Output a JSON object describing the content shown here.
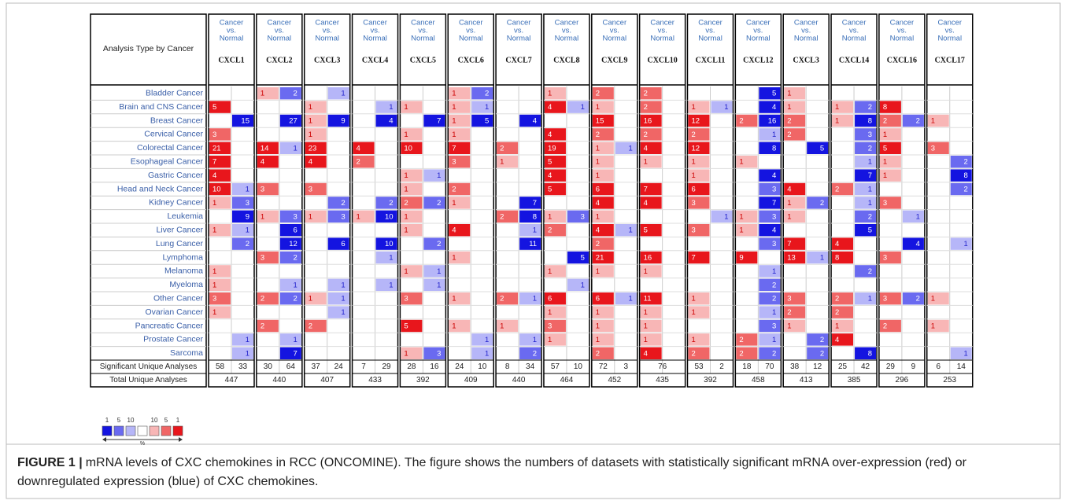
{
  "table": {
    "corner": "Analysis Type by Cancer",
    "column_header_lines": [
      "Cancer",
      "vs.",
      "Normal"
    ],
    "rows": [
      "Bladder Cancer",
      "Brain and CNS Cancer",
      "Breast Cancer",
      "Cervical Cancer",
      "Colorectal Cancer",
      "Esophageal Cancer",
      "Gastric Cancer",
      "Head and Neck Cancer",
      "Kidney Cancer",
      "Leukemia",
      "Liver Cancer",
      "Lung Cancer",
      "Lymphoma",
      "Melanoma",
      "Myeloma",
      "Other Cancer",
      "Ovarian Cancer",
      "Pancreatic Cancer",
      "Prostate Cancer",
      "Sarcoma"
    ],
    "summary_labels": [
      "Significant Unique Analyses",
      "Total Unique Analyses"
    ],
    "genes": [
      {
        "name": "CXCL1",
        "up": [
          null,
          5,
          null,
          3,
          21,
          7,
          4,
          10,
          1,
          null,
          1,
          null,
          null,
          1,
          1,
          3,
          1,
          null,
          null,
          null
        ],
        "down": [
          null,
          null,
          15,
          null,
          null,
          null,
          null,
          1,
          3,
          9,
          1,
          2,
          null,
          null,
          null,
          null,
          null,
          null,
          1,
          1
        ],
        "significant": [
          58,
          33
        ],
        "total": 447
      },
      {
        "name": "CXCL2",
        "up": [
          1,
          null,
          null,
          null,
          14,
          4,
          null,
          3,
          null,
          1,
          null,
          null,
          3,
          null,
          null,
          2,
          null,
          2,
          null,
          null
        ],
        "down": [
          2,
          null,
          27,
          null,
          1,
          null,
          null,
          null,
          null,
          3,
          6,
          12,
          2,
          null,
          1,
          2,
          null,
          null,
          1,
          7
        ],
        "significant": [
          30,
          64
        ],
        "total": 440
      },
      {
        "name": "CXCL3",
        "up": [
          null,
          1,
          1,
          1,
          23,
          4,
          null,
          3,
          null,
          1,
          null,
          null,
          null,
          null,
          null,
          1,
          null,
          2,
          null,
          null
        ],
        "down": [
          1,
          null,
          9,
          null,
          null,
          null,
          null,
          null,
          2,
          3,
          null,
          6,
          null,
          null,
          1,
          1,
          1,
          null,
          null,
          null
        ],
        "significant": [
          37,
          24
        ],
        "total": 407
      },
      {
        "name": "CXCL4",
        "up": [
          null,
          null,
          null,
          null,
          4,
          2,
          null,
          null,
          null,
          1,
          null,
          null,
          null,
          null,
          null,
          null,
          null,
          null,
          null,
          null
        ],
        "down": [
          null,
          1,
          4,
          null,
          null,
          null,
          null,
          null,
          2,
          10,
          null,
          10,
          1,
          null,
          1,
          null,
          null,
          null,
          null,
          null
        ],
        "significant": [
          7,
          29
        ],
        "total": 433
      },
      {
        "name": "CXCL5",
        "up": [
          null,
          1,
          null,
          1,
          10,
          null,
          1,
          1,
          2,
          1,
          1,
          null,
          null,
          1,
          null,
          3,
          null,
          5,
          null,
          1
        ],
        "down": [
          null,
          null,
          7,
          null,
          null,
          null,
          1,
          null,
          2,
          null,
          null,
          2,
          null,
          1,
          1,
          null,
          null,
          null,
          null,
          3
        ],
        "significant": [
          28,
          16
        ],
        "total": 392
      },
      {
        "name": "CXCL6",
        "up": [
          1,
          1,
          1,
          1,
          7,
          3,
          null,
          2,
          1,
          null,
          4,
          null,
          1,
          null,
          null,
          1,
          null,
          1,
          null,
          null
        ],
        "down": [
          2,
          1,
          5,
          null,
          null,
          null,
          null,
          null,
          null,
          null,
          null,
          null,
          null,
          null,
          null,
          null,
          null,
          null,
          1,
          1
        ],
        "significant": [
          24,
          10
        ],
        "total": 409
      },
      {
        "name": "CXCL7",
        "up": [
          null,
          null,
          null,
          null,
          2,
          1,
          null,
          null,
          null,
          2,
          null,
          null,
          null,
          null,
          null,
          2,
          null,
          1,
          null,
          null
        ],
        "down": [
          null,
          null,
          4,
          null,
          null,
          null,
          null,
          null,
          7,
          8,
          1,
          11,
          null,
          null,
          null,
          1,
          null,
          null,
          1,
          2
        ],
        "significant": [
          8,
          34
        ],
        "total": 440
      },
      {
        "name": "CXCL8",
        "up": [
          1,
          4,
          null,
          4,
          19,
          5,
          4,
          5,
          null,
          1,
          2,
          null,
          null,
          1,
          null,
          6,
          1,
          3,
          1,
          null
        ],
        "down": [
          null,
          1,
          null,
          null,
          null,
          null,
          null,
          null,
          null,
          3,
          null,
          null,
          5,
          null,
          1,
          null,
          null,
          null,
          null,
          null
        ],
        "significant": [
          57,
          10
        ],
        "total": 464
      },
      {
        "name": "CXCL9",
        "up": [
          2,
          1,
          15,
          2,
          1,
          1,
          1,
          6,
          4,
          1,
          4,
          2,
          21,
          1,
          null,
          6,
          1,
          1,
          1,
          2
        ],
        "down": [
          null,
          null,
          null,
          null,
          1,
          null,
          null,
          null,
          null,
          null,
          1,
          null,
          null,
          null,
          null,
          1,
          null,
          null,
          null,
          null
        ],
        "significant": [
          72,
          3
        ],
        "total": 452
      },
      {
        "name": "CXCL10",
        "up": [
          2,
          2,
          16,
          2,
          4,
          1,
          null,
          7,
          4,
          null,
          5,
          null,
          16,
          1,
          null,
          11,
          1,
          1,
          1,
          4
        ],
        "down": [
          null,
          null,
          null,
          null,
          null,
          null,
          null,
          null,
          null,
          null,
          null,
          null,
          null,
          null,
          null,
          null,
          null,
          null,
          null,
          null
        ],
        "significant": [
          76
        ],
        "total": 435
      },
      {
        "name": "CXCL11",
        "up": [
          null,
          1,
          12,
          2,
          12,
          1,
          1,
          6,
          3,
          null,
          3,
          null,
          7,
          null,
          null,
          1,
          1,
          null,
          1,
          2
        ],
        "down": [
          null,
          1,
          null,
          null,
          null,
          null,
          null,
          null,
          null,
          1,
          null,
          null,
          null,
          null,
          null,
          null,
          null,
          null,
          null,
          null
        ],
        "significant": [
          53,
          2
        ],
        "total": 392
      },
      {
        "name": "CXCL12",
        "up": [
          null,
          null,
          2,
          null,
          null,
          1,
          null,
          null,
          null,
          1,
          1,
          null,
          9,
          null,
          null,
          null,
          null,
          null,
          2,
          2
        ],
        "down": [
          5,
          4,
          16,
          1,
          8,
          null,
          4,
          3,
          7,
          3,
          4,
          3,
          null,
          1,
          2,
          2,
          1,
          3,
          1,
          2
        ],
        "significant": [
          18,
          70
        ],
        "total": 458
      },
      {
        "name": "CXCL3",
        "up": [
          1,
          1,
          2,
          2,
          null,
          null,
          null,
          4,
          1,
          1,
          null,
          7,
          13,
          null,
          null,
          3,
          2,
          1,
          null,
          null
        ],
        "down": [
          null,
          null,
          null,
          null,
          5,
          null,
          null,
          null,
          2,
          null,
          null,
          null,
          1,
          null,
          null,
          null,
          null,
          null,
          2,
          2
        ],
        "significant": [
          38,
          12
        ],
        "total": 413
      },
      {
        "name": "CXCL14",
        "up": [
          null,
          1,
          1,
          null,
          null,
          null,
          null,
          2,
          null,
          null,
          null,
          4,
          8,
          null,
          null,
          2,
          2,
          1,
          4,
          null
        ],
        "down": [
          null,
          2,
          8,
          3,
          2,
          1,
          7,
          1,
          1,
          2,
          5,
          null,
          null,
          2,
          null,
          1,
          null,
          null,
          null,
          8
        ],
        "significant": [
          25,
          42
        ],
        "total": 385
      },
      {
        "name": "CXCL16",
        "up": [
          null,
          8,
          2,
          1,
          5,
          1,
          1,
          null,
          3,
          null,
          null,
          null,
          3,
          null,
          null,
          3,
          null,
          2,
          null,
          null
        ],
        "down": [
          null,
          null,
          2,
          null,
          null,
          null,
          null,
          null,
          null,
          1,
          null,
          4,
          null,
          null,
          null,
          2,
          null,
          null,
          null,
          null
        ],
        "significant": [
          29,
          9
        ],
        "total": 296
      },
      {
        "name": "CXCL17",
        "up": [
          null,
          null,
          1,
          null,
          3,
          null,
          null,
          null,
          null,
          null,
          null,
          null,
          null,
          null,
          null,
          1,
          null,
          1,
          null,
          null
        ],
        "down": [
          null,
          null,
          null,
          null,
          null,
          2,
          8,
          2,
          null,
          null,
          null,
          1,
          null,
          null,
          null,
          null,
          null,
          null,
          null,
          1
        ],
        "significant": [
          6,
          14
        ],
        "total": 253
      }
    ],
    "shades": {
      "up": [
        "#e8161c",
        "#f06666",
        "#f8b6b6"
      ],
      "down": [
        "#1414e0",
        "#6a6af0",
        "#b6b6f8"
      ]
    }
  },
  "legend": {
    "down_labels": [
      1,
      5,
      10
    ],
    "up_labels": [
      10,
      5,
      1
    ],
    "unit": "%"
  },
  "caption": {
    "label": "FIGURE 1 |",
    "text": "mRNA levels of CXC chemokines in RCC (ONCOMINE). The figure shows the numbers of datasets with statistically significant mRNA over-expression (red) or downregulated expression (blue) of CXC chemokines."
  }
}
